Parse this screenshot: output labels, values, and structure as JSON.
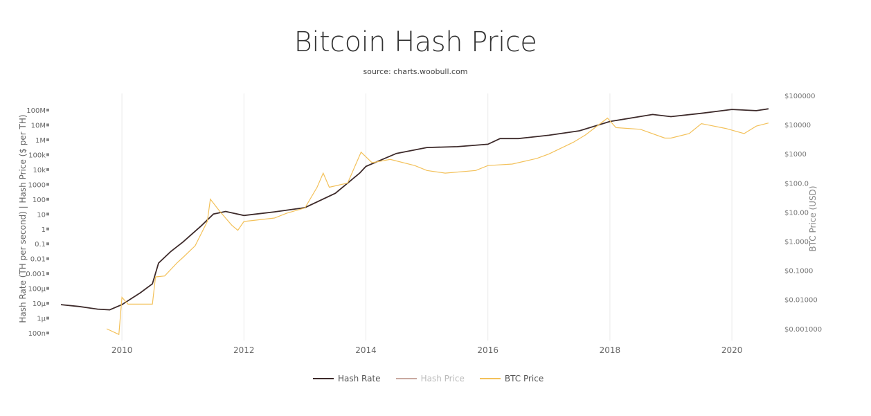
{
  "chart_data": {
    "type": "line",
    "title": "Bitcoin Hash Price",
    "subtitle": "source: charts.woobull.com",
    "xlabel": "",
    "ylabel_left": "Hash Rate (TH per second) | Hash Price ($ per TH)",
    "ylabel_right": "BTC Price (USD)",
    "xlim": [
      2009.0,
      2020.6
    ],
    "x_ticks": [
      "2010",
      "2012",
      "2014",
      "2016",
      "2018",
      "2020"
    ],
    "y_left_scale": "log",
    "y_left_ticks": [
      "100M",
      "10M",
      "1M",
      "100k",
      "10k",
      "1000",
      "100",
      "10",
      "1",
      "0.1",
      "0.01",
      "0.001",
      "100µ",
      "10µ",
      "1µ",
      "100n"
    ],
    "y_right_scale": "log",
    "y_right_ticks": [
      "$100000",
      "$10000",
      "$1000",
      "$100.0",
      "$10.00",
      "$1.000",
      "$0.1000",
      "$0.01000",
      "$0.001000"
    ],
    "grid": "vertical",
    "legend_position": "bottom",
    "series": [
      {
        "name": "Hash Rate",
        "color": "#3d2a2a",
        "axis": "left",
        "visible": true,
        "x": [
          2009.0,
          2009.3,
          2009.6,
          2009.8,
          2010.0,
          2010.3,
          2010.5,
          2010.6,
          2010.8,
          2011.0,
          2011.3,
          2011.5,
          2011.7,
          2012.0,
          2012.5,
          2013.0,
          2013.5,
          2013.9,
          2014.0,
          2014.5,
          2015.0,
          2015.5,
          2016.0,
          2016.2,
          2016.5,
          2017.0,
          2017.5,
          2018.0,
          2018.7,
          2019.0,
          2019.5,
          2020.0,
          2020.4,
          2020.6
        ],
        "y": [
          8e-06,
          6e-06,
          4e-06,
          3.6e-06,
          8e-06,
          5e-05,
          0.0002,
          0.005,
          0.03,
          0.13,
          1.6,
          10,
          15,
          8,
          14,
          27,
          250,
          5800,
          16000,
          120000,
          300000,
          340000,
          500000,
          1200000,
          1200000,
          2000000,
          4000000,
          17000000,
          50000000,
          36000000,
          60000000,
          110000000,
          90000000,
          120000000
        ]
      },
      {
        "name": "Hash Price",
        "color": "#c9a9a0",
        "axis": "left",
        "visible": false,
        "x": [],
        "y": []
      },
      {
        "name": "BTC Price",
        "color": "#f3c15a",
        "axis": "right",
        "visible": true,
        "x": [
          2009.75,
          2009.95,
          2010.0,
          2010.1,
          2010.5,
          2010.55,
          2010.7,
          2010.9,
          2011.0,
          2011.2,
          2011.4,
          2011.45,
          2011.6,
          2011.8,
          2011.9,
          2012.0,
          2012.5,
          2012.7,
          2013.0,
          2013.2,
          2013.3,
          2013.4,
          2013.7,
          2013.92,
          2014.1,
          2014.4,
          2014.8,
          2015.0,
          2015.3,
          2015.8,
          2016.0,
          2016.4,
          2016.8,
          2017.0,
          2017.4,
          2017.6,
          2017.96,
          2018.1,
          2018.5,
          2018.9,
          2019.0,
          2019.3,
          2019.5,
          2019.9,
          2020.2,
          2020.4,
          2020.6
        ],
        "y": [
          0.001,
          0.00064,
          0.012,
          0.007,
          0.007,
          0.06,
          0.065,
          0.18,
          0.28,
          0.7,
          4.8,
          28,
          11,
          3.6,
          2.4,
          4.8,
          6.3,
          9.2,
          14,
          72,
          220,
          72,
          100,
          1150,
          500,
          650,
          400,
          270,
          220,
          270,
          400,
          450,
          700,
          1000,
          2500,
          4500,
          17000,
          8000,
          7000,
          3500,
          3500,
          5000,
          11000,
          7500,
          5000,
          9000,
          11500
        ]
      }
    ]
  }
}
